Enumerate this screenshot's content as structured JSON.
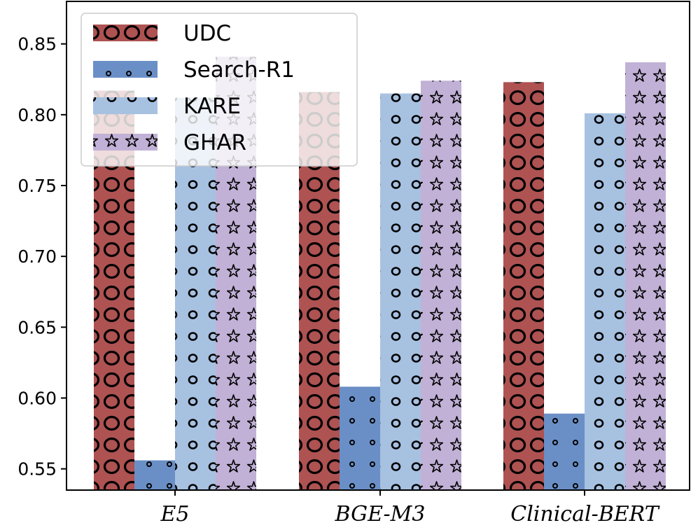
{
  "chart_data": {
    "type": "bar",
    "categories": [
      "E5",
      "BGE-M3",
      "Clinical-BERT"
    ],
    "series": [
      {
        "name": "UDC",
        "values": [
          0.817,
          0.816,
          0.823
        ],
        "color": "#ae5252",
        "pattern": "big-circles"
      },
      {
        "name": "Search-R1",
        "values": [
          0.556,
          0.608,
          0.589
        ],
        "color": "#6a8fc6",
        "pattern": "small-circles"
      },
      {
        "name": "KARE",
        "values": [
          0.812,
          0.815,
          0.801
        ],
        "color": "#a7c1e1",
        "pattern": "circles"
      },
      {
        "name": "GHAR",
        "values": [
          0.841,
          0.824,
          0.837
        ],
        "color": "#c1b1d6",
        "pattern": "stars"
      }
    ],
    "ylim": [
      0.535,
      0.88
    ],
    "yticks": [
      "0.55",
      "0.60",
      "0.65",
      "0.70",
      "0.75",
      "0.80",
      "0.85"
    ],
    "title": "",
    "xlabel": "",
    "ylabel": "",
    "grid": false,
    "legend_placement": "top-left"
  }
}
